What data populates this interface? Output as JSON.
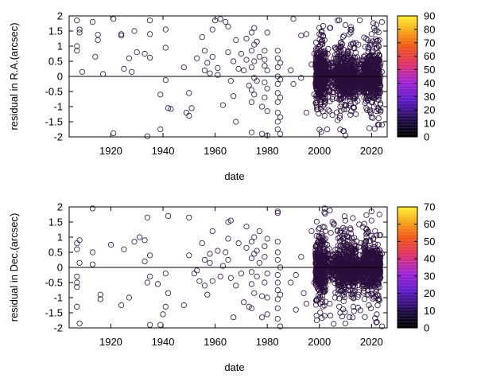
{
  "chart_data": [
    {
      "type": "scatter",
      "xlabel": "date",
      "ylabel": "residual in R.A.(arcsec)",
      "xlim": [
        1904,
        2026
      ],
      "ylim": [
        -2,
        2
      ],
      "xticks": [
        1920,
        1940,
        1960,
        1980,
        2000,
        2020
      ],
      "yticks": [
        -2,
        -1.5,
        -1,
        -0.5,
        0,
        0.5,
        1,
        1.5,
        2
      ],
      "ytick_labels": [
        "-2",
        "-1.5",
        "-1",
        "-0.5",
        "0",
        "0.5",
        "1",
        "1.5",
        "2"
      ],
      "zero_line": true,
      "colorbar": {
        "min": 0,
        "max": 90,
        "ticks": [
          0,
          10,
          20,
          30,
          40,
          50,
          60,
          70,
          80,
          90
        ]
      },
      "point_color_value": 5,
      "points": [
        [
          1907,
          1.85
        ],
        [
          1908,
          1.55
        ],
        [
          1908,
          1.45
        ],
        [
          1907,
          1.0
        ],
        [
          1907,
          0.85
        ],
        [
          1909,
          0.15
        ],
        [
          1913,
          1.8
        ],
        [
          1914,
          0.65
        ],
        [
          1915,
          1.2
        ],
        [
          1915,
          1.38
        ],
        [
          1917,
          0.08
        ],
        [
          1921,
          1.9
        ],
        [
          1921,
          -1.88
        ],
        [
          1924,
          1.35
        ],
        [
          1924,
          1.4
        ],
        [
          1925,
          0.25
        ],
        [
          1927,
          0.6
        ],
        [
          1928,
          0.15
        ],
        [
          1929,
          1.5
        ],
        [
          1930,
          0.8
        ],
        [
          1933,
          0.75
        ],
        [
          1935,
          1.85
        ],
        [
          1935,
          1.4
        ],
        [
          1935,
          0.62
        ],
        [
          1934,
          -1.98
        ],
        [
          1939,
          -0.6
        ],
        [
          1939,
          -1.75
        ],
        [
          1941,
          1.55
        ],
        [
          1941,
          0.95
        ],
        [
          1941,
          -0.12
        ],
        [
          1942,
          -1.05
        ],
        [
          1943,
          -1.08
        ],
        [
          1948,
          0.3
        ],
        [
          1949,
          -1.2
        ],
        [
          1950,
          -1.3
        ],
        [
          1950,
          -0.55
        ],
        [
          1951,
          -1.05
        ],
        [
          1953,
          0.6
        ],
        [
          1955,
          1.3
        ],
        [
          1956,
          0.85
        ],
        [
          1956,
          0.2
        ],
        [
          1957,
          0.45
        ],
        [
          1958,
          0.1
        ],
        [
          1959,
          1.55
        ],
        [
          1959,
          0.65
        ],
        [
          1960,
          1.85
        ],
        [
          1961,
          0.28
        ],
        [
          1961,
          0.05
        ],
        [
          1962,
          1.9
        ],
        [
          1963,
          -0.95
        ],
        [
          1964,
          1.8
        ],
        [
          1965,
          1.65
        ],
        [
          1965,
          0.8
        ],
        [
          1966,
          -0.15
        ],
        [
          1967,
          0.5
        ],
        [
          1967,
          -0.65
        ],
        [
          1968,
          1.2
        ],
        [
          1968,
          -1.5
        ],
        [
          1969,
          0.25
        ],
        [
          1970,
          0.75
        ],
        [
          1971,
          0.2
        ],
        [
          1972,
          1.25
        ],
        [
          1972,
          0.55
        ],
        [
          1973,
          -0.3
        ],
        [
          1974,
          1.45
        ],
        [
          1974,
          0.85
        ],
        [
          1974,
          0.3
        ],
        [
          1974,
          -0.45
        ],
        [
          1974,
          -0.85
        ],
        [
          1974,
          -1.85
        ],
        [
          1975,
          1.6
        ],
        [
          1975,
          1.05
        ],
        [
          1975,
          0.5
        ],
        [
          1975,
          -0.05
        ],
        [
          1975,
          -0.6
        ],
        [
          1976,
          1.15
        ],
        [
          1976,
          -0.15
        ],
        [
          1977,
          0.65
        ],
        [
          1978,
          -1.0
        ],
        [
          1978,
          -1.9
        ],
        [
          1979,
          0.55
        ],
        [
          1979,
          0.85
        ],
        [
          1979,
          0.35
        ],
        [
          1979,
          -0.2
        ],
        [
          1979,
          -0.7
        ],
        [
          1980,
          1.45
        ],
        [
          1980,
          0.2
        ],
        [
          1980,
          -0.4
        ],
        [
          1980,
          -1.15
        ],
        [
          1980,
          -1.95
        ],
        [
          1984,
          0.85
        ],
        [
          1984,
          0.6
        ],
        [
          1984,
          0.3
        ],
        [
          1984,
          0.0
        ],
        [
          1984,
          -0.25
        ],
        [
          1984,
          -0.55
        ],
        [
          1984,
          -0.85
        ],
        [
          1984,
          -1.2
        ],
        [
          1984,
          -1.5
        ],
        [
          1984,
          -1.75
        ],
        [
          1985,
          0.45
        ],
        [
          1985,
          -0.1
        ],
        [
          1985,
          -0.7
        ],
        [
          1985,
          -1.35
        ],
        [
          1985,
          -1.9
        ],
        [
          1989,
          0.2
        ],
        [
          1990,
          -0.25
        ],
        [
          1990,
          1.9
        ],
        [
          1993,
          1.35
        ],
        [
          1993,
          -0.05
        ],
        [
          1995,
          1.4
        ],
        [
          1995,
          -1.2
        ],
        [
          1997,
          0.4
        ],
        [
          1998,
          0.75
        ],
        [
          1998,
          -0.6
        ],
        [
          1999,
          -1.0
        ],
        [
          2000,
          1.4
        ],
        [
          2001,
          0.7
        ],
        [
          2001,
          -0.4
        ],
        [
          2002,
          1.2
        ],
        [
          2002,
          -1.3
        ],
        [
          2003,
          0.5
        ],
        [
          2003,
          -1.75
        ],
        [
          2004,
          1.6
        ],
        [
          2005,
          -0.75
        ],
        [
          2006,
          0.95
        ],
        [
          2007,
          1.85
        ],
        [
          2007,
          -1.45
        ],
        [
          2008,
          0.6
        ],
        [
          2008,
          -1.0
        ],
        [
          2009,
          1.3
        ],
        [
          2009,
          -0.25
        ],
        [
          2010,
          1.7
        ],
        [
          2010,
          -1.95
        ],
        [
          2011,
          0.85
        ],
        [
          2011,
          -0.55
        ],
        [
          2012,
          1.45
        ],
        [
          2012,
          -0.9
        ],
        [
          2013,
          0.4
        ],
        [
          2014,
          -1.25
        ],
        [
          2015,
          1.05
        ],
        [
          2016,
          -0.45
        ],
        [
          2017,
          0.65
        ],
        [
          2018,
          1.25
        ],
        [
          2018,
          -1.05
        ],
        [
          2019,
          0.25
        ],
        [
          2020,
          1.05
        ],
        [
          2020,
          -1.35
        ],
        [
          2020,
          1.4
        ],
        [
          2021,
          1.6
        ],
        [
          2021,
          -0.7
        ],
        [
          2022,
          0.5
        ],
        [
          2022,
          -1.15
        ],
        [
          2023,
          1.2
        ],
        [
          2023,
          -0.55
        ],
        [
          2024,
          1.8
        ],
        [
          2024,
          -1.6
        ],
        [
          2024,
          0.15
        ]
      ],
      "dense_bands": [
        {
          "x": [
            1998.5,
            2023.5
          ],
          "y_spread": 0.65,
          "count": 700
        },
        {
          "x": [
            1998.5,
            2002.5
          ],
          "y_spread": 1.0,
          "count": 260
        },
        {
          "x": [
            2007,
            2014
          ],
          "y_spread": 1.0,
          "count": 260
        },
        {
          "x": [
            2017,
            2023.5
          ],
          "y_spread": 0.95,
          "count": 260
        }
      ]
    },
    {
      "type": "scatter",
      "xlabel": "date",
      "ylabel": "residual in Dec.(arcsec)",
      "xlim": [
        1904,
        2026
      ],
      "ylim": [
        -2,
        2
      ],
      "xticks": [
        1920,
        1940,
        1960,
        1980,
        2000,
        2020
      ],
      "yticks": [
        -2,
        -1.5,
        -1,
        -0.5,
        0,
        0.5,
        1,
        1.5,
        2
      ],
      "ytick_labels": [
        "-2",
        "-1.5",
        "-1",
        "-0.5",
        "0",
        "0.5",
        "1",
        "1.5",
        "2"
      ],
      "zero_line": true,
      "colorbar": {
        "min": 0,
        "max": 70,
        "ticks": [
          0,
          10,
          20,
          30,
          40,
          50,
          60,
          70
        ]
      },
      "point_color_value": 8,
      "points": [
        [
          1907,
          0.8
        ],
        [
          1907,
          0.6
        ],
        [
          1908,
          0.15
        ],
        [
          1908,
          0.9
        ],
        [
          1907,
          -0.3
        ],
        [
          1907,
          -0.5
        ],
        [
          1907,
          -0.65
        ],
        [
          1907,
          -1.3
        ],
        [
          1908,
          -1.85
        ],
        [
          1913,
          1.95
        ],
        [
          1913,
          0.5
        ],
        [
          1913,
          0.1
        ],
        [
          1916,
          -0.9
        ],
        [
          1916,
          -1.05
        ],
        [
          1920,
          0.75
        ],
        [
          1924,
          -1.25
        ],
        [
          1925,
          0.6
        ],
        [
          1927,
          -1.0
        ],
        [
          1929,
          0.85
        ],
        [
          1931,
          1.0
        ],
        [
          1933,
          0.2
        ],
        [
          1933,
          0.9
        ],
        [
          1934,
          1.65
        ],
        [
          1934,
          -0.5
        ],
        [
          1935,
          -0.3
        ],
        [
          1935,
          0.4
        ],
        [
          1935,
          -1.9
        ],
        [
          1938,
          -0.55
        ],
        [
          1939,
          -1.9
        ],
        [
          1940,
          -1.55
        ],
        [
          1941,
          -0.2
        ],
        [
          1941,
          -1.3
        ],
        [
          1942,
          1.7
        ],
        [
          1942,
          -0.85
        ],
        [
          1948,
          -1.25
        ],
        [
          1950,
          0.4
        ],
        [
          1950,
          1.65
        ],
        [
          1952,
          -0.2
        ],
        [
          1953,
          -0.1
        ],
        [
          1954,
          -0.45
        ],
        [
          1955,
          0.8
        ],
        [
          1956,
          0.25
        ],
        [
          1956,
          -0.6
        ],
        [
          1957,
          -0.9
        ],
        [
          1958,
          0.45
        ],
        [
          1958,
          0.15
        ],
        [
          1959,
          1.2
        ],
        [
          1959,
          -0.45
        ],
        [
          1961,
          0.55
        ],
        [
          1962,
          -0.3
        ],
        [
          1963,
          0.05
        ],
        [
          1964,
          0.5
        ],
        [
          1965,
          1.5
        ],
        [
          1965,
          0.95
        ],
        [
          1965,
          0.25
        ],
        [
          1966,
          -0.35
        ],
        [
          1966,
          1.55
        ],
        [
          1967,
          -1.65
        ],
        [
          1968,
          -0.6
        ],
        [
          1969,
          0.8
        ],
        [
          1970,
          -0.2
        ],
        [
          1971,
          -1.15
        ],
        [
          1972,
          0.65
        ],
        [
          1972,
          1.35
        ],
        [
          1973,
          -1.3
        ],
        [
          1974,
          0.85
        ],
        [
          1974,
          0.3
        ],
        [
          1974,
          -0.15
        ],
        [
          1974,
          -0.55
        ],
        [
          1974,
          -1.35
        ],
        [
          1975,
          1.0
        ],
        [
          1975,
          0.45
        ],
        [
          1975,
          -0.85
        ],
        [
          1976,
          0.55
        ],
        [
          1976,
          -0.3
        ],
        [
          1977,
          0.15
        ],
        [
          1977,
          1.2
        ],
        [
          1978,
          -0.95
        ],
        [
          1978,
          -1.65
        ],
        [
          1979,
          0.35
        ],
        [
          1979,
          -0.5
        ],
        [
          1979,
          0.7
        ],
        [
          1980,
          -0.2
        ],
        [
          1980,
          -1.0
        ],
        [
          1980,
          -1.55
        ],
        [
          1980,
          0.95
        ],
        [
          1984,
          1.85
        ],
        [
          1984,
          1.8
        ],
        [
          1984,
          0.85
        ],
        [
          1984,
          0.5
        ],
        [
          1984,
          0.25
        ],
        [
          1984,
          -0.25
        ],
        [
          1984,
          -0.5
        ],
        [
          1984,
          -0.75
        ],
        [
          1984,
          -1.05
        ],
        [
          1984,
          -1.35
        ],
        [
          1984,
          -1.7
        ],
        [
          1985,
          0.0
        ],
        [
          1985,
          -0.9
        ],
        [
          1985,
          -1.95
        ],
        [
          1989,
          -0.5
        ],
        [
          1991,
          -0.25
        ],
        [
          1991,
          -1.4
        ],
        [
          1993,
          0.35
        ],
        [
          1994,
          -0.85
        ],
        [
          1995,
          -1.2
        ],
        [
          1997,
          1.2
        ],
        [
          1998,
          -0.5
        ],
        [
          1999,
          -1.05
        ],
        [
          1999,
          -1.75
        ],
        [
          2000,
          1.3
        ],
        [
          2001,
          -0.7
        ],
        [
          2002,
          1.95
        ],
        [
          2002,
          -1.6
        ],
        [
          2003,
          0.75
        ],
        [
          2004,
          -1.2
        ],
        [
          2005,
          1.5
        ],
        [
          2006,
          -1.0
        ],
        [
          2007,
          1.2
        ],
        [
          2008,
          -1.5
        ],
        [
          2009,
          0.95
        ],
        [
          2010,
          1.55
        ],
        [
          2010,
          -1.85
        ],
        [
          2011,
          -0.75
        ],
        [
          2012,
          1.25
        ],
        [
          2013,
          -1.3
        ],
        [
          2014,
          0.6
        ],
        [
          2015,
          -0.9
        ],
        [
          2016,
          0.8
        ],
        [
          2017,
          -0.55
        ],
        [
          2018,
          1.1
        ],
        [
          2019,
          -1.25
        ],
        [
          2020,
          1.85
        ],
        [
          2020,
          1.55
        ],
        [
          2021,
          -1.0
        ],
        [
          2022,
          0.55
        ],
        [
          2022,
          -1.55
        ],
        [
          2023,
          1.75
        ],
        [
          2023,
          -1.1
        ],
        [
          2024,
          0.45
        ],
        [
          2024,
          -1.95
        ]
      ],
      "dense_bands": [
        {
          "x": [
            1998.5,
            2023.5
          ],
          "y_spread": 0.6,
          "count": 700
        },
        {
          "x": [
            1998.5,
            2002.5
          ],
          "y_spread": 1.05,
          "count": 260
        },
        {
          "x": [
            2007,
            2014
          ],
          "y_spread": 1.0,
          "count": 260
        },
        {
          "x": [
            2017,
            2023.5
          ],
          "y_spread": 0.95,
          "count": 260
        }
      ]
    }
  ]
}
